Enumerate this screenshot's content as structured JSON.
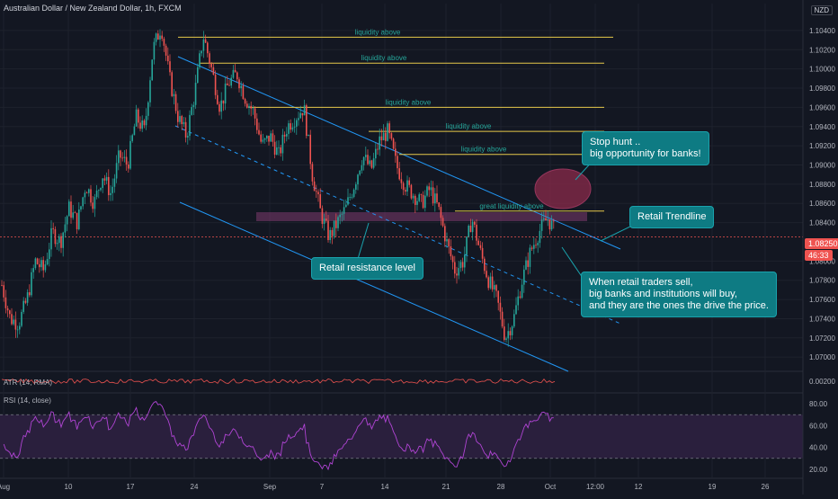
{
  "header": {
    "title": "Australian Dollar / New Zealand Dollar, 1h, FXCM",
    "currency": "NZD"
  },
  "price": {
    "current": "1.08250",
    "countdown": "46:33",
    "current_value": 1.0825
  },
  "colors": {
    "background": "#131722",
    "up_candle": "#26a69a",
    "down_candle": "#ef5350",
    "liquidity_line": "#e6c84a",
    "trendline": "#2196f3",
    "callout": "#0e7b83",
    "rsi": "#b044d4",
    "atr": "#ef5350",
    "zone": "#7e3a6e"
  },
  "chart_data": {
    "type": "line",
    "symbol": "Australian Dollar / New Zealand Dollar, 1h, FXCM",
    "ylim": [
      1.0688,
      1.1068
    ],
    "y_ticks": [
      "1.10400",
      "1.10200",
      "1.10000",
      "1.09800",
      "1.09600",
      "1.09400",
      "1.09200",
      "1.09000",
      "1.08800",
      "1.08600",
      "1.08400",
      "1.08000",
      "1.07800",
      "1.07600",
      "1.07400",
      "1.07200",
      "1.07000"
    ],
    "x_ticks": [
      "Aug",
      "10",
      "17",
      "24",
      "Sep",
      "7",
      "14",
      "21",
      "28",
      "Oct",
      "12:00",
      "12",
      "19",
      "26"
    ],
    "series": [
      {
        "values": [
          1.0775,
          1.074,
          1.0735,
          1.076,
          1.08,
          1.079,
          1.083,
          1.082,
          1.0855,
          1.084,
          1.088,
          1.086,
          1.089,
          1.087,
          1.091,
          1.09,
          1.095,
          1.0935,
          1.102,
          1.1045,
          1.099,
          1.095,
          1.093,
          1.0975,
          1.1035,
          1.1,
          1.096,
          1.0985,
          1.0995,
          1.097,
          1.0955,
          1.092,
          1.093,
          1.091,
          1.094,
          1.095,
          1.096,
          1.089,
          1.085,
          1.0825,
          1.084,
          1.0855,
          1.088,
          1.091,
          1.0895,
          1.0925,
          1.0935,
          1.09,
          1.088,
          1.087,
          1.086,
          1.0875,
          1.0855,
          1.082,
          1.079,
          1.08,
          1.0845,
          1.081,
          1.078,
          1.076,
          1.072,
          1.074,
          1.078,
          1.081,
          1.083,
          1.0845,
          1.083
        ]
      }
    ],
    "horizontal_levels": [
      {
        "label": "liquidity above",
        "price": 1.1033
      },
      {
        "label": "liquidity above",
        "price": 1.1006
      },
      {
        "label": "liquidity above",
        "price": 1.096
      },
      {
        "label": "liquidity above",
        "price": 1.0935
      },
      {
        "label": "liquidity above",
        "price": 1.0911
      },
      {
        "label": "great liquidity above",
        "price": 1.0852
      }
    ],
    "annotations": [
      {
        "label": "Stop hunt ..\nbig opportunity for banks!"
      },
      {
        "label": "Retail Trendline"
      },
      {
        "label": "Retail resistance level"
      },
      {
        "label": "When retail traders sell,\nbig banks and institutions will buy,\nand they are the ones the drive the price."
      }
    ],
    "indicators": {
      "atr": {
        "label": "ATR (14, RMA)",
        "ticks": [
          "0.00200"
        ]
      },
      "rsi": {
        "label": "RSI (14, close)",
        "ticks": [
          "80.00",
          "60.00",
          "40.00",
          "20.00"
        ],
        "upper": 70,
        "lower": 30
      }
    }
  }
}
